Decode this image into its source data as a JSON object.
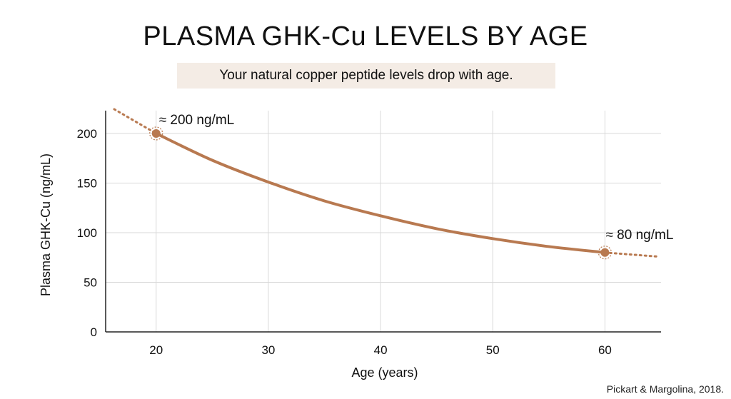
{
  "title": "PLASMA GHK-Cu LEVELS BY AGE",
  "subtitle": "Your natural copper peptide levels drop with age.",
  "source": "Pickart & Margolina, 2018.",
  "colors": {
    "curve": "#b87950",
    "grid": "#d9d9d9",
    "axis": "#222222"
  },
  "chart_data": {
    "type": "line",
    "xlabel": "Age (years)",
    "ylabel": "Plasma GHK-Cu (ng/mL)",
    "xlim": [
      15.5,
      65
    ],
    "ylim": [
      0,
      223
    ],
    "xticks": [
      20,
      30,
      40,
      50,
      60
    ],
    "yticks": [
      0,
      50,
      100,
      150,
      200
    ],
    "grid": true,
    "series": [
      {
        "x": [
          20,
          25,
          30,
          35,
          40,
          45,
          50,
          55,
          60
        ],
        "values": [
          200,
          173,
          151,
          132,
          117,
          104,
          94,
          86,
          80
        ]
      }
    ],
    "extrapolation": {
      "x": [
        15.5,
        20,
        60,
        65
      ],
      "values": [
        223,
        200,
        80,
        76
      ]
    },
    "annotations": [
      {
        "x": 20,
        "y": 200,
        "text": "≈ 200 ng/mL"
      },
      {
        "x": 60,
        "y": 80,
        "text": "≈ 80 ng/mL"
      }
    ]
  }
}
